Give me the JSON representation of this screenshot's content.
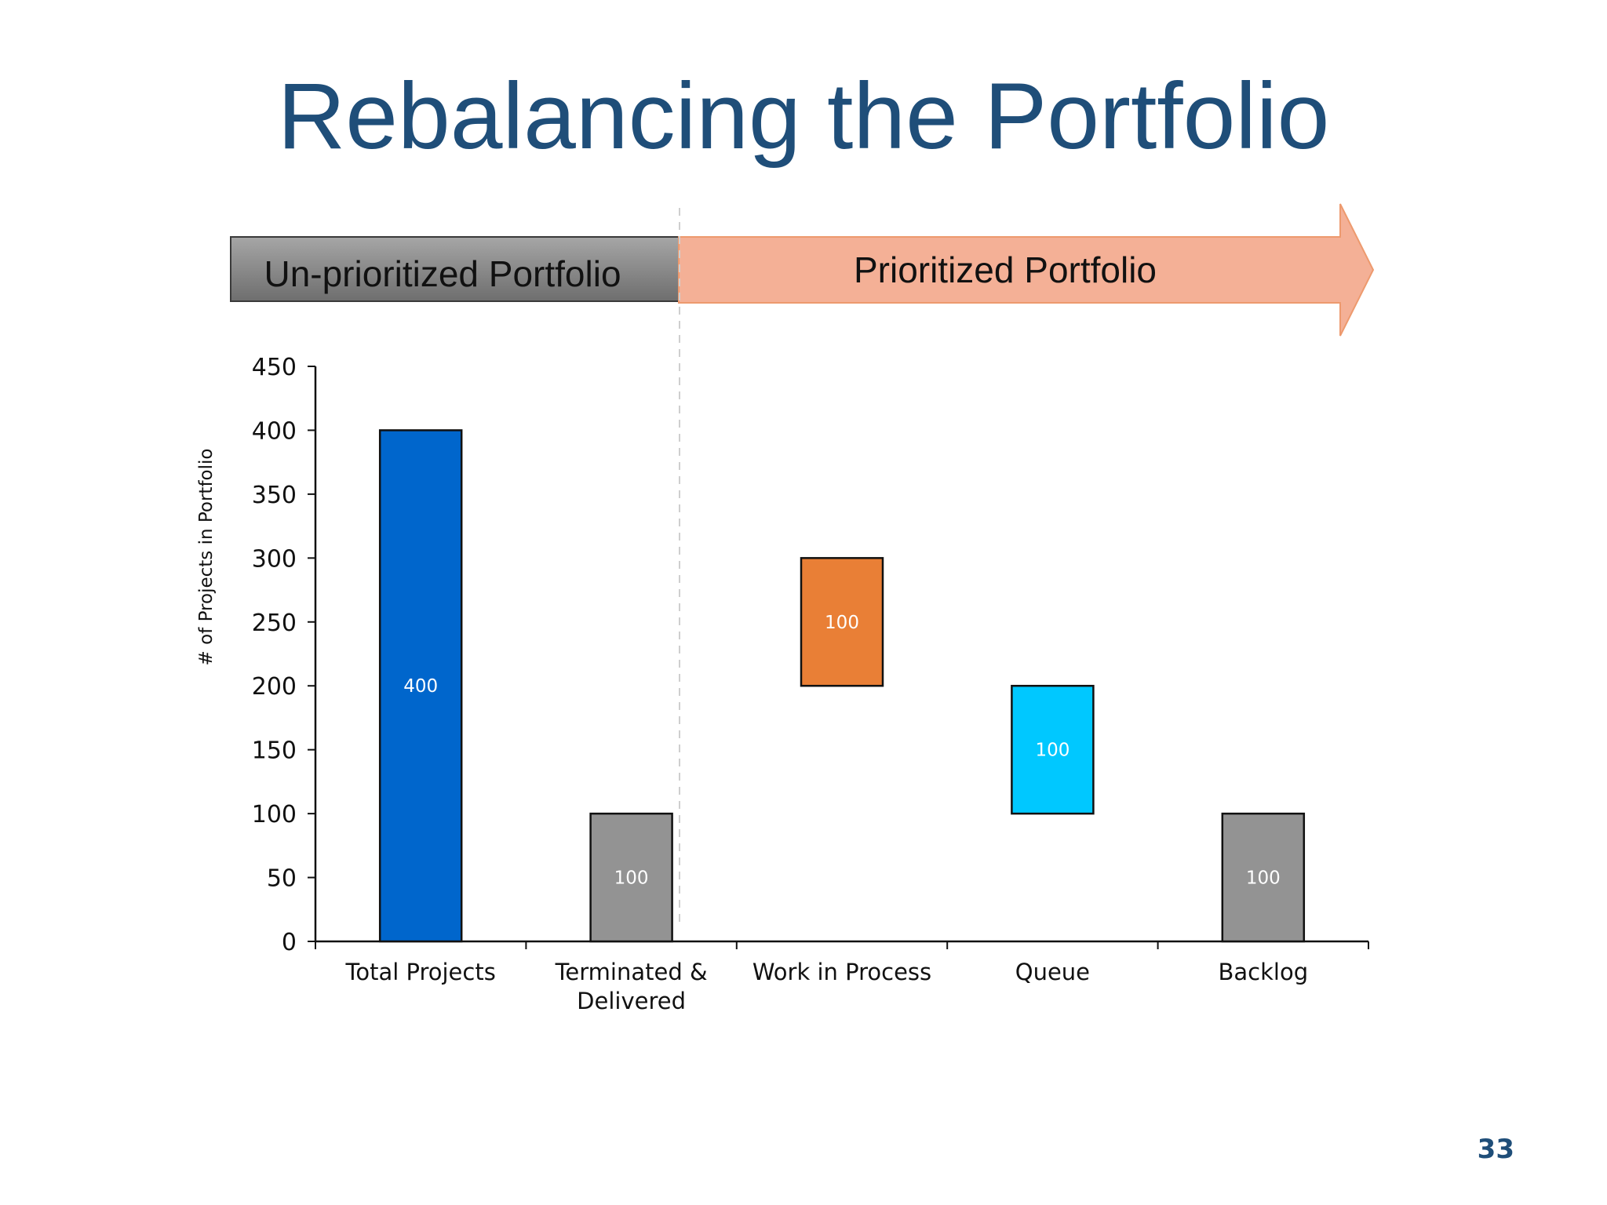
{
  "slide": {
    "title": "Rebalancing the Portfolio",
    "page_number": "33"
  },
  "phases": {
    "unprioritized_label": "Un-prioritized Portfolio",
    "prioritized_label": "Prioritized Portfolio"
  },
  "colors": {
    "title": "#1f4e79",
    "unprioritized_band": "#7f7f7f",
    "prioritized_arrow": "#f4b096",
    "prioritized_arrow_stroke": "#ed9a6e"
  },
  "chart_data": {
    "type": "bar",
    "subtype": "floating-waterfall",
    "title": "",
    "xlabel": "",
    "ylabel": "# of Projects in Portfolio",
    "ylim": [
      0,
      450
    ],
    "yticks": [
      0,
      50,
      100,
      150,
      200,
      250,
      300,
      350,
      400,
      450
    ],
    "grid": false,
    "legend": "none",
    "categories": [
      [
        "Total Projects"
      ],
      [
        "Terminated &",
        "Delivered"
      ],
      [
        "Work in Process"
      ],
      [
        "Queue"
      ],
      [
        "Backlog"
      ]
    ],
    "bars": [
      {
        "base": 0,
        "top": 400,
        "label": "400",
        "color": "#0066cc"
      },
      {
        "base": 0,
        "top": 100,
        "label": "100",
        "color": "#939393"
      },
      {
        "base": 200,
        "top": 300,
        "label": "100",
        "color": "#e97f36"
      },
      {
        "base": 100,
        "top": 200,
        "label": "100",
        "color": "#00c8ff"
      },
      {
        "base": 0,
        "top": 100,
        "label": "100",
        "color": "#939393"
      }
    ]
  }
}
